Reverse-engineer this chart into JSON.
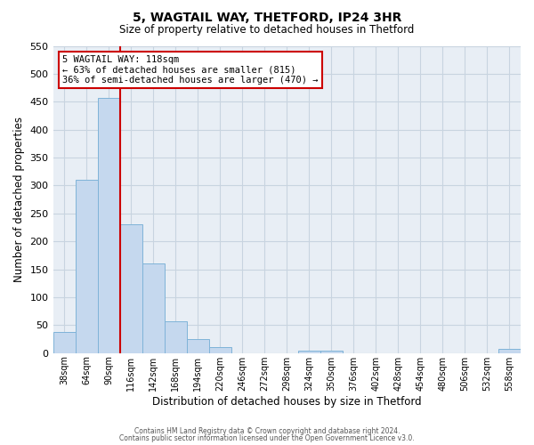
{
  "title": "5, WAGTAIL WAY, THETFORD, IP24 3HR",
  "subtitle": "Size of property relative to detached houses in Thetford",
  "xlabel": "Distribution of detached houses by size in Thetford",
  "ylabel": "Number of detached properties",
  "bar_labels": [
    "38sqm",
    "64sqm",
    "90sqm",
    "116sqm",
    "142sqm",
    "168sqm",
    "194sqm",
    "220sqm",
    "246sqm",
    "272sqm",
    "298sqm",
    "324sqm",
    "350sqm",
    "376sqm",
    "402sqm",
    "428sqm",
    "454sqm",
    "480sqm",
    "506sqm",
    "532sqm",
    "558sqm"
  ],
  "bar_values": [
    38,
    310,
    457,
    230,
    160,
    57,
    25,
    10,
    0,
    0,
    0,
    5,
    5,
    0,
    0,
    0,
    0,
    0,
    0,
    0,
    8
  ],
  "bar_color": "#c5d8ee",
  "bar_edge_color": "#7fb3d8",
  "reference_line_color": "#cc0000",
  "annotation_title": "5 WAGTAIL WAY: 118sqm",
  "annotation_line1": "← 63% of detached houses are smaller (815)",
  "annotation_line2": "36% of semi-detached houses are larger (470) →",
  "annotation_box_color": "#ffffff",
  "annotation_box_edge_color": "#cc0000",
  "ylim": [
    0,
    550
  ],
  "yticks": [
    0,
    50,
    100,
    150,
    200,
    250,
    300,
    350,
    400,
    450,
    500,
    550
  ],
  "footer1": "Contains HM Land Registry data © Crown copyright and database right 2024.",
  "footer2": "Contains public sector information licensed under the Open Government Licence v3.0.",
  "bg_color": "#ffffff",
  "plot_bg_color": "#e8eef5",
  "grid_color": "#c8d4e0"
}
